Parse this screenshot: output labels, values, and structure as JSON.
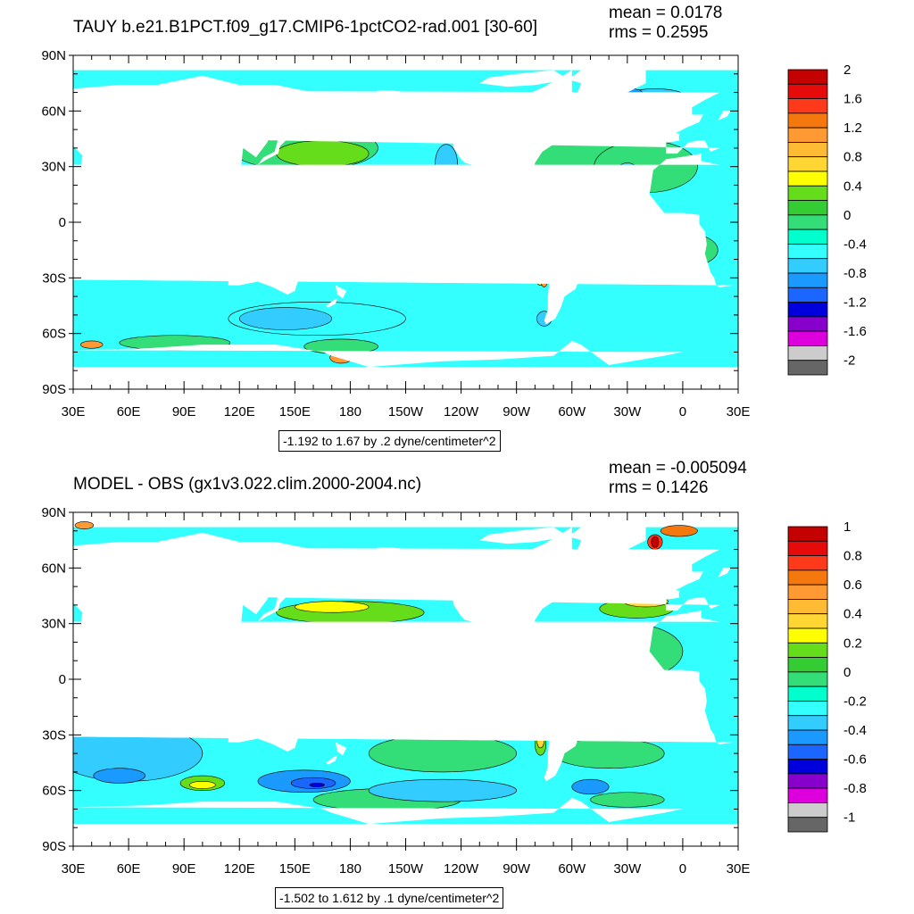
{
  "panels": [
    {
      "title": "TAUY b.e21.B1PCT.f09_g17.CMIP6-1pctCO2-rad.001 [30-60]",
      "stats": {
        "mean": "mean = 0.0178",
        "rms": "rms = 0.2595"
      },
      "info": "-1.192 to 1.67 by .2 dyne/centimeter^2",
      "colorbar": {
        "labels": [
          "2",
          "1.6",
          "1.2",
          "0.8",
          "0.4",
          "0",
          "-0.4",
          "-0.8",
          "-1.2",
          "-1.6",
          "-2"
        ],
        "colors": [
          "#c40000",
          "#e60b0b",
          "#ff3a1a",
          "#f5780f",
          "#ff9933",
          "#ffbb33",
          "#ffd633",
          "#ffff00",
          "#66dd1a",
          "#33cc33",
          "#33dd77",
          "#00ffcc",
          "#33ffff",
          "#33ccff",
          "#1a99ff",
          "#1a66ff",
          "#0000dd",
          "#8800cc",
          "#dd00dd",
          "#cccccc",
          "#666666"
        ]
      }
    },
    {
      "title": "MODEL - OBS (gx1v3.022.clim.2000-2004.nc)",
      "stats": {
        "mean": "mean = -0.005094",
        "rms": "rms = 0.1426"
      },
      "info": "-1.502 to 1.612 by .1 dyne/centimeter^2",
      "colorbar": {
        "labels": [
          "1",
          "0.8",
          "0.6",
          "0.4",
          "0.2",
          "0",
          "-0.2",
          "-0.4",
          "-0.6",
          "-0.8",
          "-1"
        ],
        "colors": [
          "#c40000",
          "#e60b0b",
          "#ff3a1a",
          "#f5780f",
          "#ff9933",
          "#ffbb33",
          "#ffd633",
          "#ffff00",
          "#66dd1a",
          "#33cc33",
          "#33dd77",
          "#00ffcc",
          "#33ffff",
          "#33ccff",
          "#1a99ff",
          "#1a66ff",
          "#0000dd",
          "#8800cc",
          "#dd00dd",
          "#cccccc",
          "#666666"
        ]
      }
    }
  ],
  "axes": {
    "lat_labels": [
      "90N",
      "60N",
      "30N",
      "0",
      "30S",
      "60S",
      "90S"
    ],
    "lon_labels": [
      "30E",
      "60E",
      "90E",
      "120E",
      "150E",
      "180",
      "150W",
      "120W",
      "90W",
      "60W",
      "30W",
      "0",
      "30E"
    ]
  },
  "colors": {
    "ocean_base": "#33ffff",
    "land": "#ffffff",
    "frame": "#000000"
  }
}
